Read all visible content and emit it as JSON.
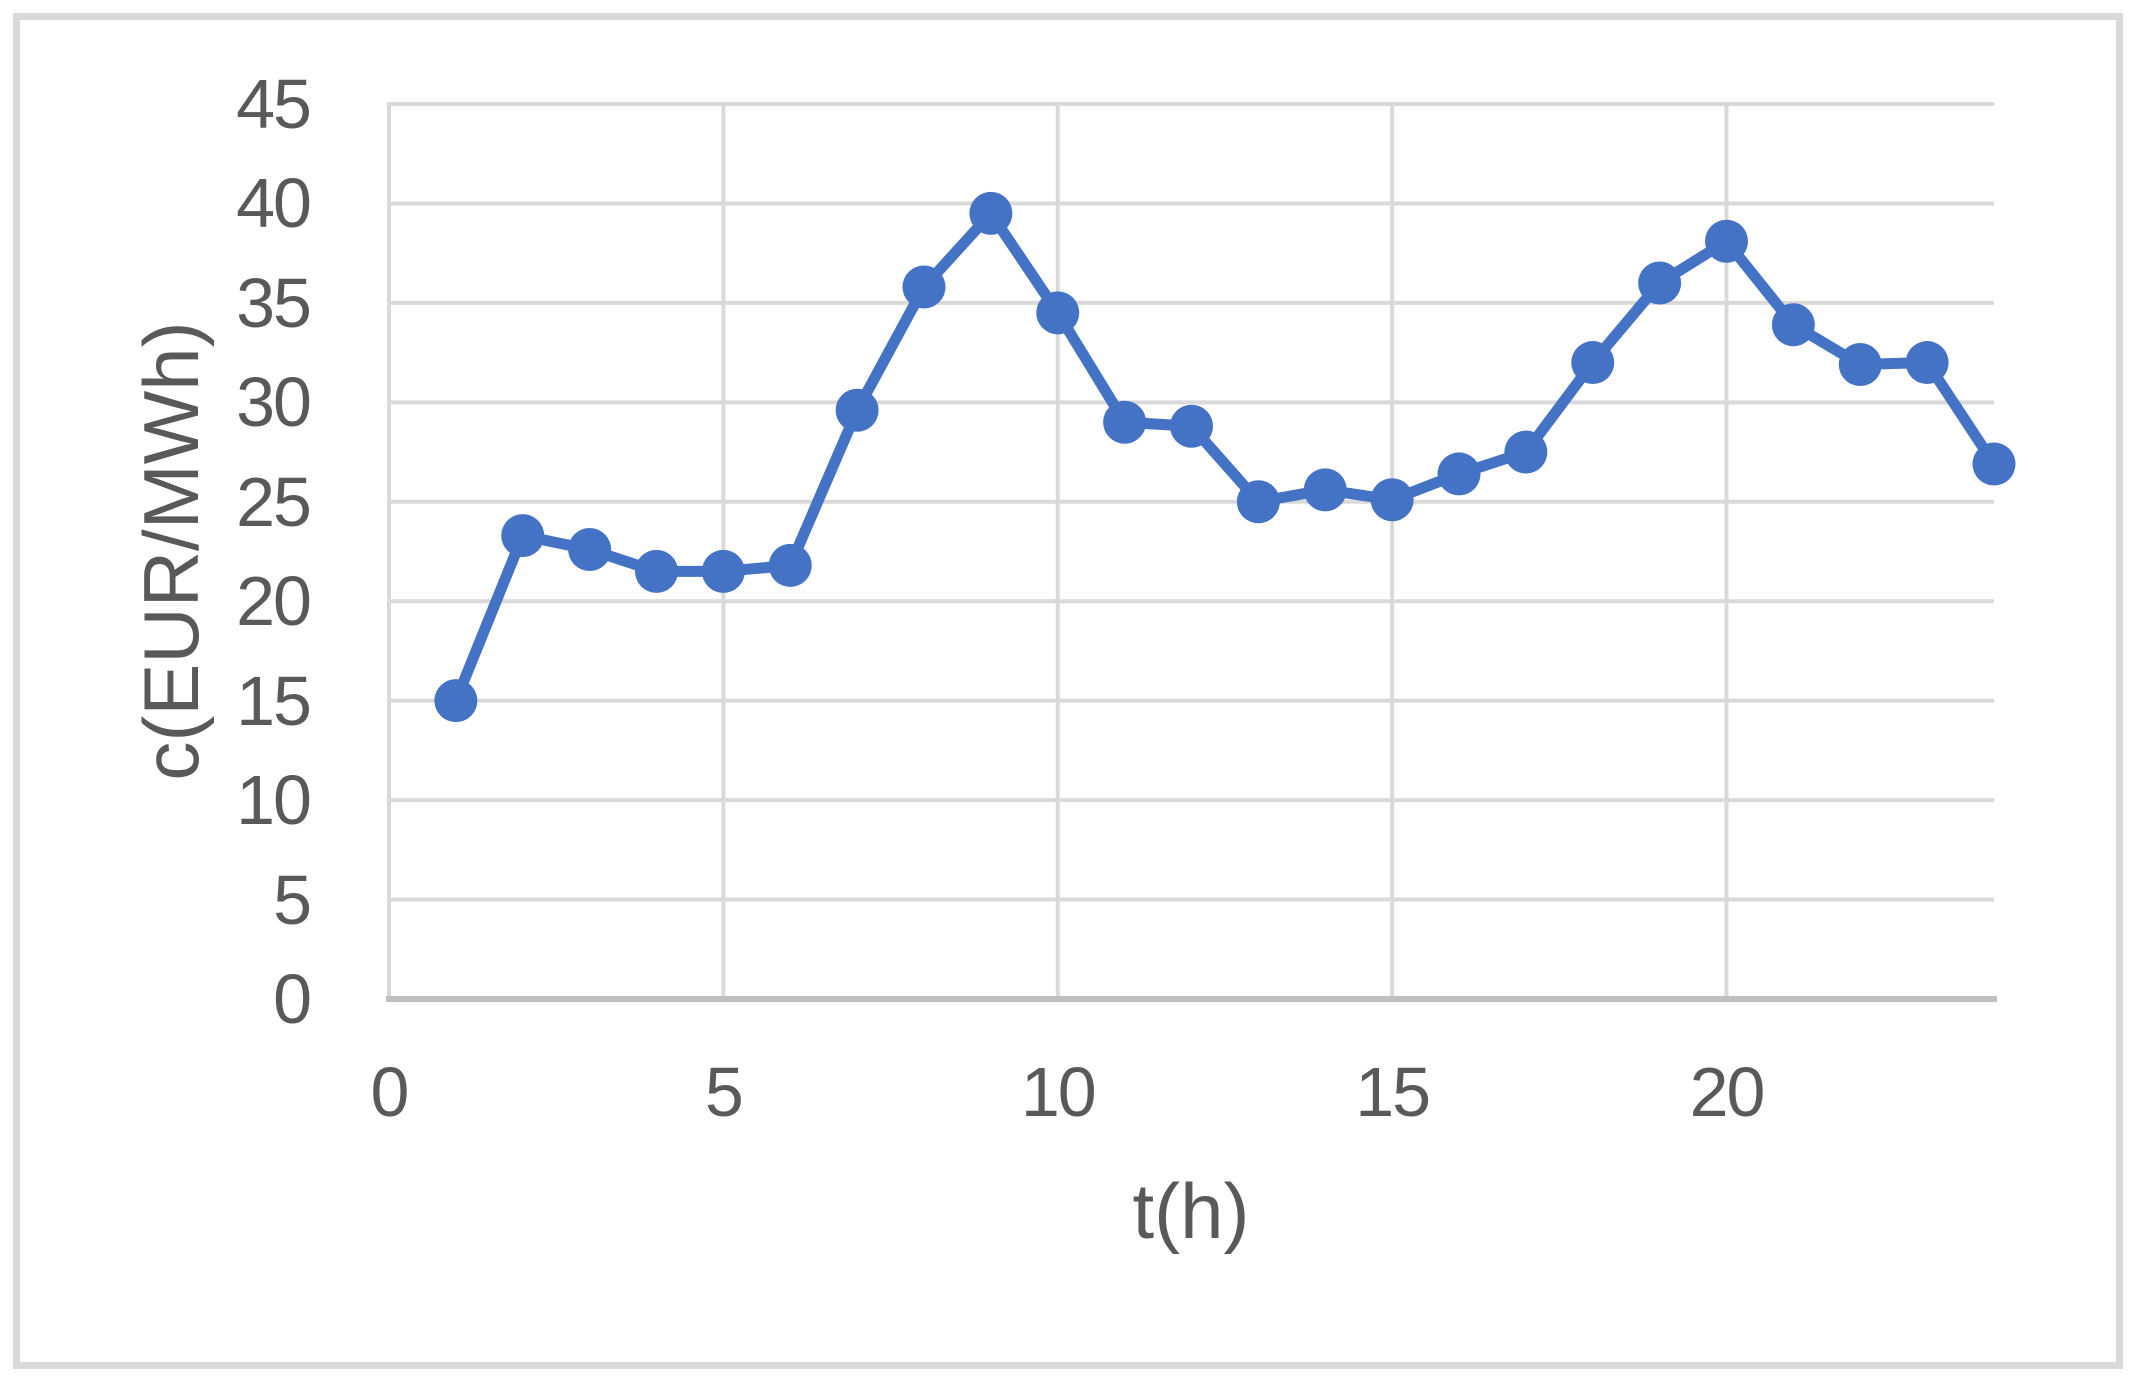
{
  "chart_data": {
    "type": "line",
    "title": "",
    "xlabel": "t(h)",
    "ylabel": "c(EUR/MWh)",
    "x": [
      1,
      2,
      3,
      4,
      5,
      6,
      7,
      8,
      9,
      10,
      11,
      12,
      13,
      14,
      15,
      16,
      17,
      18,
      19,
      20,
      21,
      22,
      23,
      24
    ],
    "values": [
      15.0,
      23.3,
      22.6,
      21.5,
      21.5,
      21.8,
      29.6,
      35.8,
      39.5,
      34.5,
      29.0,
      28.8,
      25.0,
      25.6,
      25.1,
      26.4,
      27.5,
      32.0,
      36.0,
      38.1,
      33.9,
      31.9,
      32.0,
      26.9
    ],
    "xlim": [
      0,
      24
    ],
    "ylim": [
      0,
      45
    ],
    "x_ticks": [
      0,
      5,
      10,
      15,
      20
    ],
    "y_ticks": [
      0,
      5,
      10,
      15,
      20,
      25,
      30,
      35,
      40,
      45
    ],
    "grid": true,
    "legend": false,
    "marker": "circle",
    "style": {
      "line_color": "#4472C4",
      "grid_color": "#D9D9D9",
      "axis_color": "#BFBFBF",
      "text_color": "#595959",
      "border_color": "#D9D9D9"
    }
  }
}
